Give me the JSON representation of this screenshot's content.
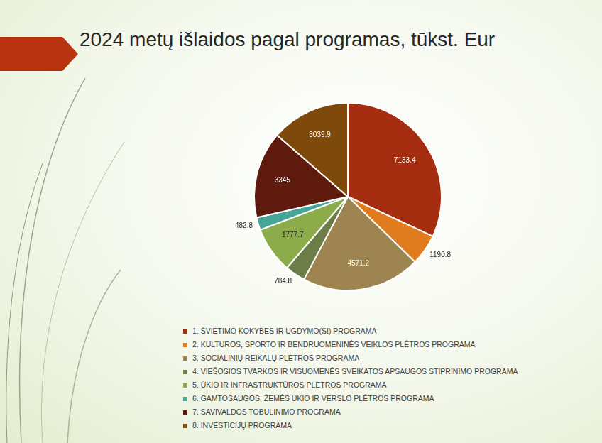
{
  "chart_data": {
    "type": "pie",
    "title": "2024 metų išlaidos pagal programas, tūkst. Eur",
    "categories": [
      "1. ŠVIETIMO KOKYBĖS IR UGDYMO(SI) PROGRAMA",
      "2. KULTŪROS, SPORTO IR BENDRUOMENINĖS VEIKLOS PLĖTROS PROGRAMA",
      "3. SOCIALINIŲ REIKALŲ PLĖTROS PROGRAMA",
      "4. VIEŠOSIOS TVARKOS IR VISUOMENĖS SVEIKATOS APSAUGOS STIPRINIMO PROGRAMA",
      "5. ŪKIO IR INFRASTRUKTŪROS PLĖTROS PROGRAMA",
      "6. GAMTOSAUGOS, ŽEMĖS ŪKIO IR VERSLO PLĖTROS PROGRAMA",
      "7. SAVIVALDOS TOBULINIMO PROGRAMA",
      "8. INVESTICIJŲ PROGRAMA"
    ],
    "values": [
      7133.4,
      1190.8,
      4571.2,
      784.8,
      1777.7,
      482.8,
      3345,
      3039.9
    ],
    "colors": [
      "#a52e10",
      "#e07c1e",
      "#9d8451",
      "#6c7d48",
      "#8cab4a",
      "#45a596",
      "#5f1a0e",
      "#7e4a0c"
    ],
    "data_labels": true,
    "legend": "bottom"
  }
}
